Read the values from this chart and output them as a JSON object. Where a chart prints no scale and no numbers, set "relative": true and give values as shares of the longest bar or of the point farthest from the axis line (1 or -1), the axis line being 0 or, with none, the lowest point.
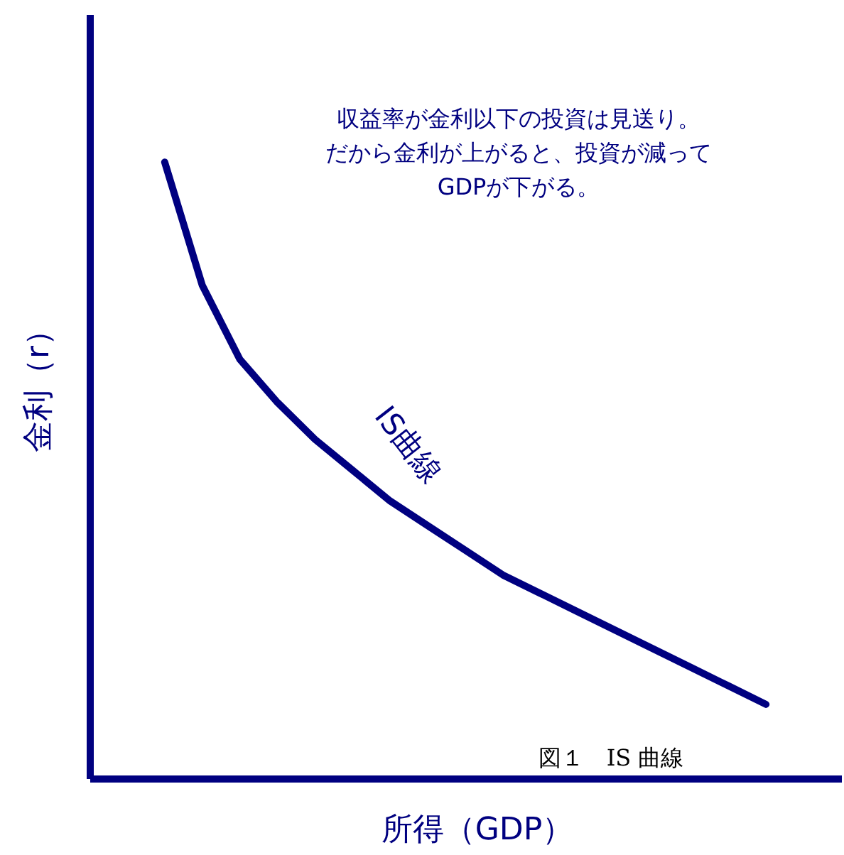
{
  "chart_data": {
    "type": "line",
    "relative": true,
    "xlabel": "所得（GDP）",
    "ylabel": "金利（r）",
    "categories": [
      null,
      null,
      null,
      null,
      null,
      null,
      null,
      null,
      null,
      null,
      null,
      null,
      null,
      null,
      null,
      null,
      null,
      null,
      null,
      null,
      null
    ],
    "series": [
      {
        "name": "IS曲線",
        "color": "#000080",
        "values": [
          null,
          null,
          1,
          0.8,
          0.68,
          0.61,
          0.55,
          0.5,
          0.45,
          0.41,
          0.37,
          0.33,
          0.3,
          0.27,
          0.24,
          0.21,
          0.18,
          0.15,
          0.12,
          null,
          null
        ]
      }
    ],
    "annotations": [
      "収益率が金利以下の投資は見送り。",
      "だから金利が上がると、投資が減って",
      "GDPが下がる。",
      "図１　IS 曲線"
    ],
    "grid": false,
    "tick_labels": false,
    "line_style": "solid",
    "marker": "none"
  }
}
